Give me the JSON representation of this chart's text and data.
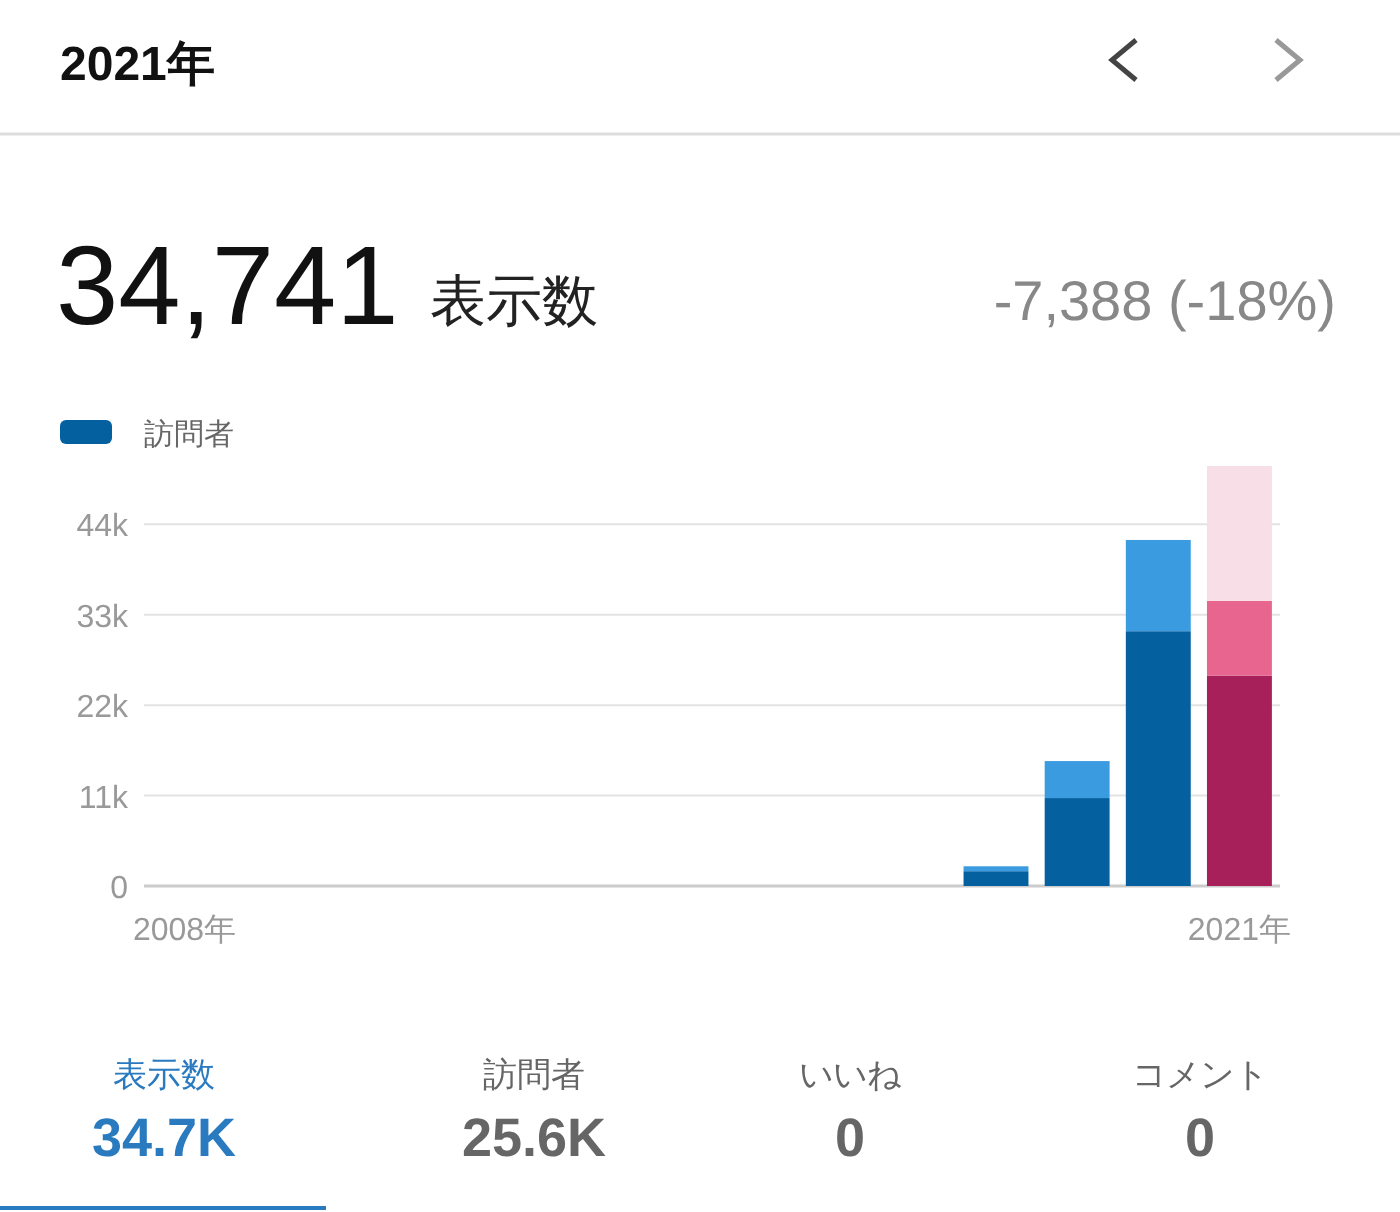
{
  "chart_data": {
    "type": "bar",
    "title": "2021年",
    "stacked": true,
    "legend": "top left",
    "grid": "y",
    "annotations": [
      "34,741",
      "表示数",
      "-7,388 (-18%)",
      "表示数",
      "34.7K",
      "訪問者",
      "25.6K",
      "いいね",
      "0",
      "コメント",
      "0"
    ],
    "categories": [
      "2008年",
      null,
      null,
      null,
      null,
      null,
      null,
      null,
      null,
      null,
      null,
      null,
      null,
      "2021年"
    ],
    "series": [
      {
        "name": "訪問者",
        "color": "#04609f",
        "colors": [
          "#04609f",
          "#04609f",
          "#04609f",
          "#04609f",
          "#04609f",
          "#04609f",
          "#04609f",
          "#04609f",
          "#04609f",
          "#04609f",
          "#04609f",
          "#04609f",
          "#04609f",
          "#a8205a"
        ],
        "values": [
          0,
          0,
          0,
          0,
          0,
          0,
          0,
          0,
          0,
          0,
          1800,
          10700,
          31000,
          25600
        ]
      },
      {
        "colors": [
          "#3b9be0",
          "#3b9be0",
          "#3b9be0",
          "#3b9be0",
          "#3b9be0",
          "#3b9be0",
          "#3b9be0",
          "#3b9be0",
          "#3b9be0",
          "#3b9be0",
          "#3b9be0",
          "#3b9be0",
          "#3b9be0",
          "#e8658f"
        ],
        "values": [
          0,
          0,
          0,
          0,
          0,
          0,
          0,
          0,
          0,
          0,
          600,
          4500,
          11100,
          9100
        ]
      },
      {
        "color": "#f8dfe7",
        "values": [
          null,
          null,
          null,
          null,
          null,
          null,
          null,
          null,
          null,
          null,
          null,
          null,
          null,
          16400
        ]
      }
    ],
    "ylim": [
      0,
      51100
    ],
    "yticks": [
      0,
      {
        "value": 11000,
        "label": "11k"
      },
      {
        "value": 22000,
        "label": "22k"
      },
      {
        "value": 33000,
        "label": "33k"
      },
      {
        "value": 44000,
        "label": "44k"
      }
    ]
  }
}
